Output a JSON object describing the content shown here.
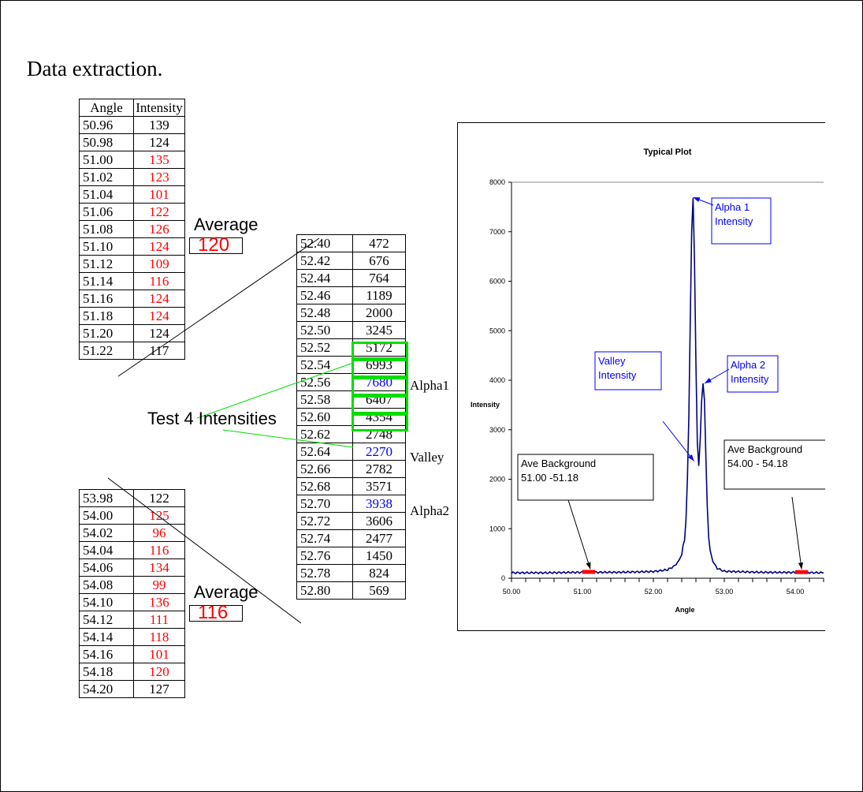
{
  "title": "Data extraction.",
  "background_table": {
    "headers": [
      "Angle",
      "Intensity"
    ],
    "rows": [
      {
        "angle": "50.96",
        "intensity": "139",
        "color": "black"
      },
      {
        "angle": "50.98",
        "intensity": "124",
        "color": "black"
      },
      {
        "angle": "51.00",
        "intensity": "135",
        "color": "red"
      },
      {
        "angle": "51.02",
        "intensity": "123",
        "color": "red"
      },
      {
        "angle": "51.04",
        "intensity": "101",
        "color": "red"
      },
      {
        "angle": "51.06",
        "intensity": "122",
        "color": "red"
      },
      {
        "angle": "51.08",
        "intensity": "126",
        "color": "red"
      },
      {
        "angle": "51.10",
        "intensity": "124",
        "color": "red"
      },
      {
        "angle": "51.12",
        "intensity": "109",
        "color": "red"
      },
      {
        "angle": "51.14",
        "intensity": "116",
        "color": "red"
      },
      {
        "angle": "51.16",
        "intensity": "124",
        "color": "red"
      },
      {
        "angle": "51.18",
        "intensity": "124",
        "color": "red"
      },
      {
        "angle": "51.20",
        "intensity": "124",
        "color": "black"
      },
      {
        "angle": "51.22",
        "intensity": "117",
        "color": "black"
      }
    ],
    "average_label": "Average",
    "average_value": "120"
  },
  "peak_table": {
    "rows": [
      {
        "angle": "52.40",
        "intensity": "472",
        "color": "black",
        "label": ""
      },
      {
        "angle": "52.42",
        "intensity": "676",
        "color": "black",
        "label": ""
      },
      {
        "angle": "52.44",
        "intensity": "764",
        "color": "black",
        "label": ""
      },
      {
        "angle": "52.46",
        "intensity": "1189",
        "color": "black",
        "label": ""
      },
      {
        "angle": "52.48",
        "intensity": "2000",
        "color": "black",
        "label": ""
      },
      {
        "angle": "52.50",
        "intensity": "3245",
        "color": "black",
        "label": ""
      },
      {
        "angle": "52.52",
        "intensity": "5172",
        "color": "black",
        "label": ""
      },
      {
        "angle": "52.54",
        "intensity": "6993",
        "color": "black",
        "label": ""
      },
      {
        "angle": "52.56",
        "intensity": "7680",
        "color": "blue",
        "label": "Alpha1"
      },
      {
        "angle": "52.58",
        "intensity": "6407",
        "color": "black",
        "label": ""
      },
      {
        "angle": "52.60",
        "intensity": "4354",
        "color": "black",
        "label": ""
      },
      {
        "angle": "52.62",
        "intensity": "2748",
        "color": "black",
        "label": ""
      },
      {
        "angle": "52.64",
        "intensity": "2270",
        "color": "blue",
        "label": "Valley"
      },
      {
        "angle": "52.66",
        "intensity": "2782",
        "color": "black",
        "label": ""
      },
      {
        "angle": "52.68",
        "intensity": "3571",
        "color": "black",
        "label": ""
      },
      {
        "angle": "52.70",
        "intensity": "3938",
        "color": "blue",
        "label": "Alpha2"
      },
      {
        "angle": "52.72",
        "intensity": "3606",
        "color": "black",
        "label": ""
      },
      {
        "angle": "52.74",
        "intensity": "2477",
        "color": "black",
        "label": ""
      },
      {
        "angle": "52.76",
        "intensity": "1450",
        "color": "black",
        "label": ""
      },
      {
        "angle": "52.78",
        "intensity": "824",
        "color": "black",
        "label": ""
      },
      {
        "angle": "52.80",
        "intensity": "569",
        "color": "black",
        "label": ""
      }
    ],
    "test_label": "Test 4 Intensities",
    "highlight_color": "#00dd00"
  },
  "background_table_2": {
    "rows": [
      {
        "angle": "53.98",
        "intensity": "122",
        "color": "black"
      },
      {
        "angle": "54.00",
        "intensity": "125",
        "color": "red"
      },
      {
        "angle": "54.02",
        "intensity": "96",
        "color": "red"
      },
      {
        "angle": "54.04",
        "intensity": "116",
        "color": "red"
      },
      {
        "angle": "54.06",
        "intensity": "134",
        "color": "red"
      },
      {
        "angle": "54.08",
        "intensity": "99",
        "color": "red"
      },
      {
        "angle": "54.10",
        "intensity": "136",
        "color": "red"
      },
      {
        "angle": "54.12",
        "intensity": "111",
        "color": "red"
      },
      {
        "angle": "54.14",
        "intensity": "118",
        "color": "red"
      },
      {
        "angle": "54.16",
        "intensity": "101",
        "color": "red"
      },
      {
        "angle": "54.18",
        "intensity": "120",
        "color": "red"
      },
      {
        "angle": "54.20",
        "intensity": "127",
        "color": "black"
      }
    ],
    "average_label": "Average",
    "average_value": "116"
  },
  "chart_data": {
    "type": "line",
    "title": "Typical Plot",
    "xlabel": "Angle",
    "ylabel": "Intensity",
    "xlim": [
      50.0,
      54.4
    ],
    "ylim": [
      0,
      8000
    ],
    "x_ticks": [
      "50.00",
      "51.00",
      "52.00",
      "53.00",
      "54.00"
    ],
    "y_ticks": [
      "0",
      "1000",
      "2000",
      "3000",
      "4000",
      "5000",
      "6000",
      "7000",
      "8000"
    ],
    "grid": false,
    "line_color": "#000080",
    "series": [
      {
        "x": [
          50.0,
          50.5,
          51.0,
          51.5,
          52.0,
          52.2,
          52.3,
          52.36,
          52.4,
          52.42,
          52.44,
          52.46,
          52.48,
          52.5,
          52.52,
          52.54,
          52.56,
          52.58,
          52.6,
          52.62,
          52.64,
          52.66,
          52.68,
          52.7,
          52.72,
          52.74,
          52.76,
          52.78,
          52.8,
          52.84,
          52.9,
          53.0,
          53.5,
          54.0,
          54.4
        ],
        "y": [
          110,
          110,
          120,
          120,
          135,
          170,
          250,
          360,
          472,
          676,
          764,
          1189,
          2000,
          3245,
          5172,
          6993,
          7680,
          6407,
          4354,
          2748,
          2270,
          2782,
          3571,
          3938,
          3606,
          2477,
          1450,
          824,
          569,
          330,
          200,
          140,
          120,
          116,
          110
        ]
      }
    ],
    "background_markers": [
      {
        "x_start": 51.0,
        "x_end": 51.18,
        "y": 120,
        "color": "#ff0000"
      },
      {
        "x_start": 54.0,
        "x_end": 54.18,
        "y": 116,
        "color": "#ff0000"
      }
    ],
    "annotations": [
      {
        "text": [
          "Alpha 1",
          "Intensity"
        ],
        "x": 52.56,
        "y": 7680,
        "color": "#0000ff"
      },
      {
        "text": [
          "Alpha 2",
          "Intensity"
        ],
        "x": 52.7,
        "y": 3938,
        "color": "#0000ff"
      },
      {
        "text": [
          "Valley",
          "Intensity"
        ],
        "x": 52.64,
        "y": 2270,
        "color": "#0000ff"
      },
      {
        "text": [
          "Ave Background",
          "51.00 -51.18"
        ],
        "x": 51.09,
        "y": 120,
        "color": "#000000"
      },
      {
        "text": [
          "Ave Background",
          "54.00 - 54.18"
        ],
        "x": 54.09,
        "y": 116,
        "color": "#000000"
      }
    ]
  }
}
